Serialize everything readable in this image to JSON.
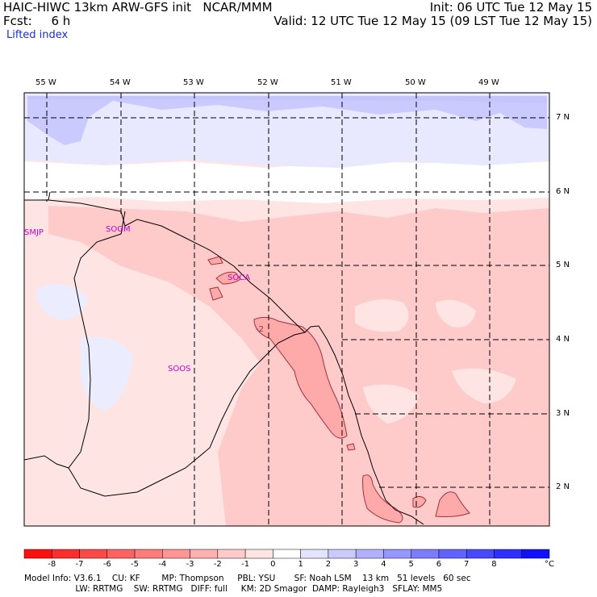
{
  "header": {
    "left_line1": "HAIC-HIWC 13km ARW-GFS init   NCAR/MMM",
    "left_line2": "Fcst:     6 h",
    "field": "Lifted index",
    "init": "Init: 06 UTC Tue 12 May 15",
    "valid": "Valid: 12 UTC Tue 12 May 15 (09 LST Tue 12 May 15)"
  },
  "map": {
    "lon_labels": [
      "55 W",
      "54 W",
      "53 W",
      "52 W",
      "51 W",
      "50 W",
      "49 W"
    ],
    "lat_labels": [
      "7 N",
      "6 N",
      "5 N",
      "4 N",
      "3 N",
      "2 N"
    ],
    "stations": [
      "SMJP",
      "SOGM",
      "SOCA",
      "SOOS"
    ],
    "contour_label": "-2"
  },
  "colorbar": {
    "ticks": [
      "-8",
      "-7",
      "-6",
      "-5",
      "-4",
      "-3",
      "-2",
      "-1",
      "0",
      "1",
      "2",
      "3",
      "4",
      "5",
      "6",
      "7",
      "8"
    ],
    "unit": "°C",
    "colors": [
      "#ff1010",
      "#ff2e2e",
      "#ff4848",
      "#ff6262",
      "#ff7c7c",
      "#ff9696",
      "#ffb0b0",
      "#ffcaca",
      "#ffe4e4",
      "#ffffff",
      "#e4e4ff",
      "#cacaff",
      "#b0b0ff",
      "#9696ff",
      "#7c7cff",
      "#6262ff",
      "#4848ff",
      "#2e2eff",
      "#1010ff"
    ]
  },
  "footer": {
    "line1": "Model Info: V3.6.1    CU: KF        MP: Thompson     PBL: YSU       SF: Noah LSM    13 km   51 levels   60 sec",
    "line2": "                   LW: RRTMG    SW: RRTMG   DIFF: full     KM: 2D Smagor  DAMP: Rayleigh3   SFLAY: MM5"
  }
}
